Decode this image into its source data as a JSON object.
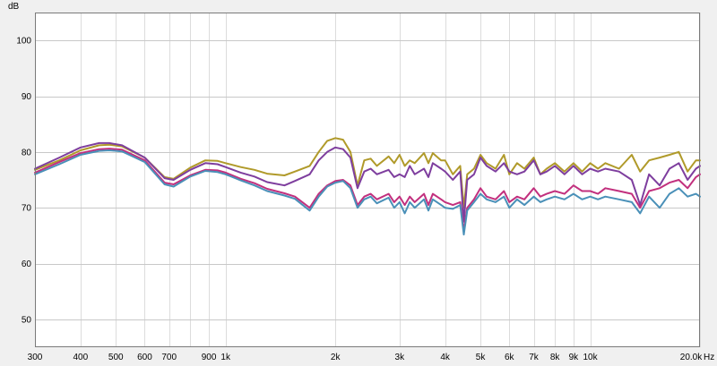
{
  "chart_data": {
    "type": "line",
    "title": "",
    "xlabel": "",
    "ylabel": "",
    "x_unit": "Hz",
    "y_unit": "dB",
    "x_scale": "log",
    "xlim": [
      300,
      20000
    ],
    "ylim": [
      45,
      105
    ],
    "grid": true,
    "y_ticks": [
      50,
      60,
      70,
      80,
      90,
      100
    ],
    "y_tick_labels": [
      "50",
      "60",
      "70",
      "80",
      "90",
      "100"
    ],
    "x_ticks": [
      300,
      400,
      500,
      600,
      700,
      900,
      1000,
      2000,
      3000,
      4000,
      5000,
      6000,
      7000,
      8000,
      9000,
      10000,
      20000
    ],
    "x_tick_labels": [
      "300",
      "400",
      "500",
      "600",
      "700",
      "900",
      "1k",
      "2k",
      "3k",
      "4k",
      "5k",
      "6k",
      "7k",
      "8k",
      "9k",
      "10k",
      "20.0k"
    ],
    "series": [
      {
        "color": "#b09a2a",
        "x": [
          300,
          350,
          400,
          450,
          480,
          520,
          600,
          680,
          720,
          800,
          880,
          950,
          1000,
          1100,
          1200,
          1300,
          1450,
          1550,
          1700,
          1800,
          1900,
          2000,
          2100,
          2200,
          2300,
          2400,
          2500,
          2600,
          2800,
          2900,
          3000,
          3100,
          3200,
          3300,
          3500,
          3600,
          3700,
          3900,
          4000,
          4200,
          4400,
          4500,
          4600,
          4800,
          5000,
          5200,
          5500,
          5800,
          6000,
          6300,
          6600,
          7000,
          7300,
          7600,
          8000,
          8500,
          9000,
          9500,
          10000,
          10500,
          11000,
          12000,
          13000,
          13700,
          14500,
          15500,
          16500,
          17500,
          18500,
          19500,
          20000
        ],
        "y": [
          76.8,
          78.5,
          80.3,
          81.2,
          81.3,
          81.0,
          79.0,
          75.5,
          75.2,
          77.2,
          78.5,
          78.4,
          78.0,
          77.3,
          76.8,
          76.1,
          75.8,
          76.5,
          77.5,
          80.0,
          82.0,
          82.5,
          82.2,
          80.0,
          74.0,
          78.5,
          78.8,
          77.5,
          79.2,
          78.0,
          79.5,
          77.5,
          78.5,
          78.0,
          79.8,
          78.0,
          79.8,
          78.5,
          78.5,
          76.0,
          77.5,
          70.0,
          76.0,
          77.0,
          79.5,
          78.0,
          77.0,
          79.5,
          76.0,
          78.0,
          77.0,
          79.0,
          76.0,
          77.0,
          78.0,
          76.5,
          78.0,
          76.5,
          78.0,
          77.0,
          78.0,
          77.0,
          79.5,
          76.5,
          78.5,
          79.0,
          79.5,
          80.0,
          76.5,
          78.5,
          78.5
        ]
      },
      {
        "color": "#7e3e9e",
        "x": [
          300,
          350,
          400,
          450,
          480,
          520,
          600,
          680,
          720,
          800,
          880,
          950,
          1000,
          1100,
          1200,
          1300,
          1450,
          1550,
          1700,
          1800,
          1900,
          2000,
          2100,
          2200,
          2300,
          2400,
          2500,
          2600,
          2800,
          2900,
          3000,
          3100,
          3200,
          3300,
          3500,
          3600,
          3700,
          3900,
          4000,
          4200,
          4400,
          4500,
          4600,
          4800,
          5000,
          5200,
          5500,
          5800,
          6000,
          6300,
          6600,
          7000,
          7300,
          7600,
          8000,
          8500,
          9000,
          9500,
          10000,
          10500,
          11000,
          12000,
          13000,
          13700,
          14500,
          15500,
          16500,
          17500,
          18500,
          19500,
          20000
        ],
        "y": [
          77.0,
          79.0,
          80.8,
          81.6,
          81.6,
          81.2,
          79.0,
          75.3,
          75.0,
          76.8,
          78.0,
          77.8,
          77.3,
          76.3,
          75.6,
          74.6,
          74.0,
          74.8,
          76.0,
          78.5,
          80.0,
          80.8,
          80.5,
          79.0,
          73.5,
          76.5,
          77.0,
          76.0,
          76.8,
          75.5,
          76.0,
          75.5,
          77.5,
          76.0,
          77.0,
          75.5,
          78.0,
          77.0,
          76.5,
          75.0,
          76.5,
          67.5,
          75.0,
          76.0,
          79.0,
          77.5,
          76.5,
          78.0,
          76.5,
          76.0,
          76.5,
          78.5,
          76.0,
          76.5,
          77.5,
          76.0,
          77.5,
          76.0,
          77.0,
          76.5,
          77.0,
          76.5,
          75.0,
          70.5,
          76.0,
          74.0,
          77.0,
          78.0,
          75.0,
          77.0,
          77.5
        ]
      },
      {
        "color": "#c2307e",
        "x": [
          300,
          350,
          400,
          450,
          480,
          520,
          600,
          680,
          720,
          800,
          880,
          950,
          1000,
          1100,
          1200,
          1300,
          1450,
          1550,
          1700,
          1800,
          1900,
          2000,
          2100,
          2200,
          2300,
          2400,
          2500,
          2600,
          2800,
          2900,
          3000,
          3100,
          3200,
          3300,
          3500,
          3600,
          3700,
          3900,
          4000,
          4200,
          4400,
          4500,
          4600,
          4800,
          5000,
          5200,
          5500,
          5800,
          6000,
          6300,
          6600,
          7000,
          7300,
          7600,
          8000,
          8500,
          9000,
          9500,
          10000,
          10500,
          11000,
          12000,
          13000,
          13700,
          14500,
          15500,
          16500,
          17500,
          18500,
          19500,
          20000
        ],
        "y": [
          76.3,
          78.2,
          79.8,
          80.5,
          80.6,
          80.4,
          78.5,
          74.5,
          74.2,
          75.8,
          76.8,
          76.7,
          76.3,
          75.2,
          74.4,
          73.4,
          72.6,
          72.0,
          70.0,
          72.5,
          74.0,
          74.8,
          75.0,
          74.0,
          70.5,
          72.0,
          72.5,
          71.5,
          72.5,
          71.0,
          72.0,
          70.5,
          72.0,
          71.0,
          72.5,
          70.5,
          72.5,
          71.5,
          71.0,
          70.5,
          71.0,
          65.8,
          70.0,
          71.5,
          73.5,
          72.0,
          71.5,
          73.0,
          71.0,
          72.0,
          71.5,
          73.5,
          72.0,
          72.5,
          73.0,
          72.5,
          74.0,
          73.0,
          73.0,
          72.5,
          73.5,
          73.0,
          72.5,
          70.0,
          73.0,
          73.5,
          74.5,
          75.0,
          73.5,
          75.5,
          76.0
        ]
      },
      {
        "color": "#4a90b8",
        "x": [
          300,
          350,
          400,
          450,
          480,
          520,
          600,
          680,
          720,
          800,
          880,
          950,
          1000,
          1100,
          1200,
          1300,
          1450,
          1550,
          1700,
          1800,
          1900,
          2000,
          2100,
          2200,
          2300,
          2400,
          2500,
          2600,
          2800,
          2900,
          3000,
          3100,
          3200,
          3300,
          3500,
          3600,
          3700,
          3900,
          4000,
          4200,
          4400,
          4500,
          4600,
          4800,
          5000,
          5200,
          5500,
          5800,
          6000,
          6300,
          6600,
          7000,
          7300,
          7600,
          8000,
          8500,
          9000,
          9500,
          10000,
          10500,
          11000,
          12000,
          13000,
          13700,
          14500,
          15500,
          16500,
          17500,
          18500,
          19500,
          20000
        ],
        "y": [
          76.0,
          77.8,
          79.5,
          80.2,
          80.3,
          80.1,
          78.2,
          74.2,
          73.8,
          75.6,
          76.6,
          76.4,
          76.0,
          74.9,
          74.0,
          73.0,
          72.2,
          71.6,
          69.5,
          72.0,
          73.8,
          74.5,
          74.8,
          73.5,
          70.0,
          71.5,
          72.0,
          70.8,
          71.8,
          70.0,
          71.0,
          69.0,
          71.0,
          70.0,
          71.5,
          69.5,
          71.5,
          70.5,
          70.0,
          69.8,
          70.5,
          65.2,
          69.5,
          71.0,
          72.5,
          71.5,
          71.0,
          72.0,
          70.0,
          71.5,
          70.5,
          72.0,
          71.0,
          71.5,
          72.0,
          71.5,
          72.5,
          71.5,
          72.0,
          71.5,
          72.0,
          71.5,
          71.0,
          69.0,
          72.0,
          70.0,
          72.5,
          73.5,
          72.0,
          72.5,
          72.0
        ]
      }
    ]
  }
}
